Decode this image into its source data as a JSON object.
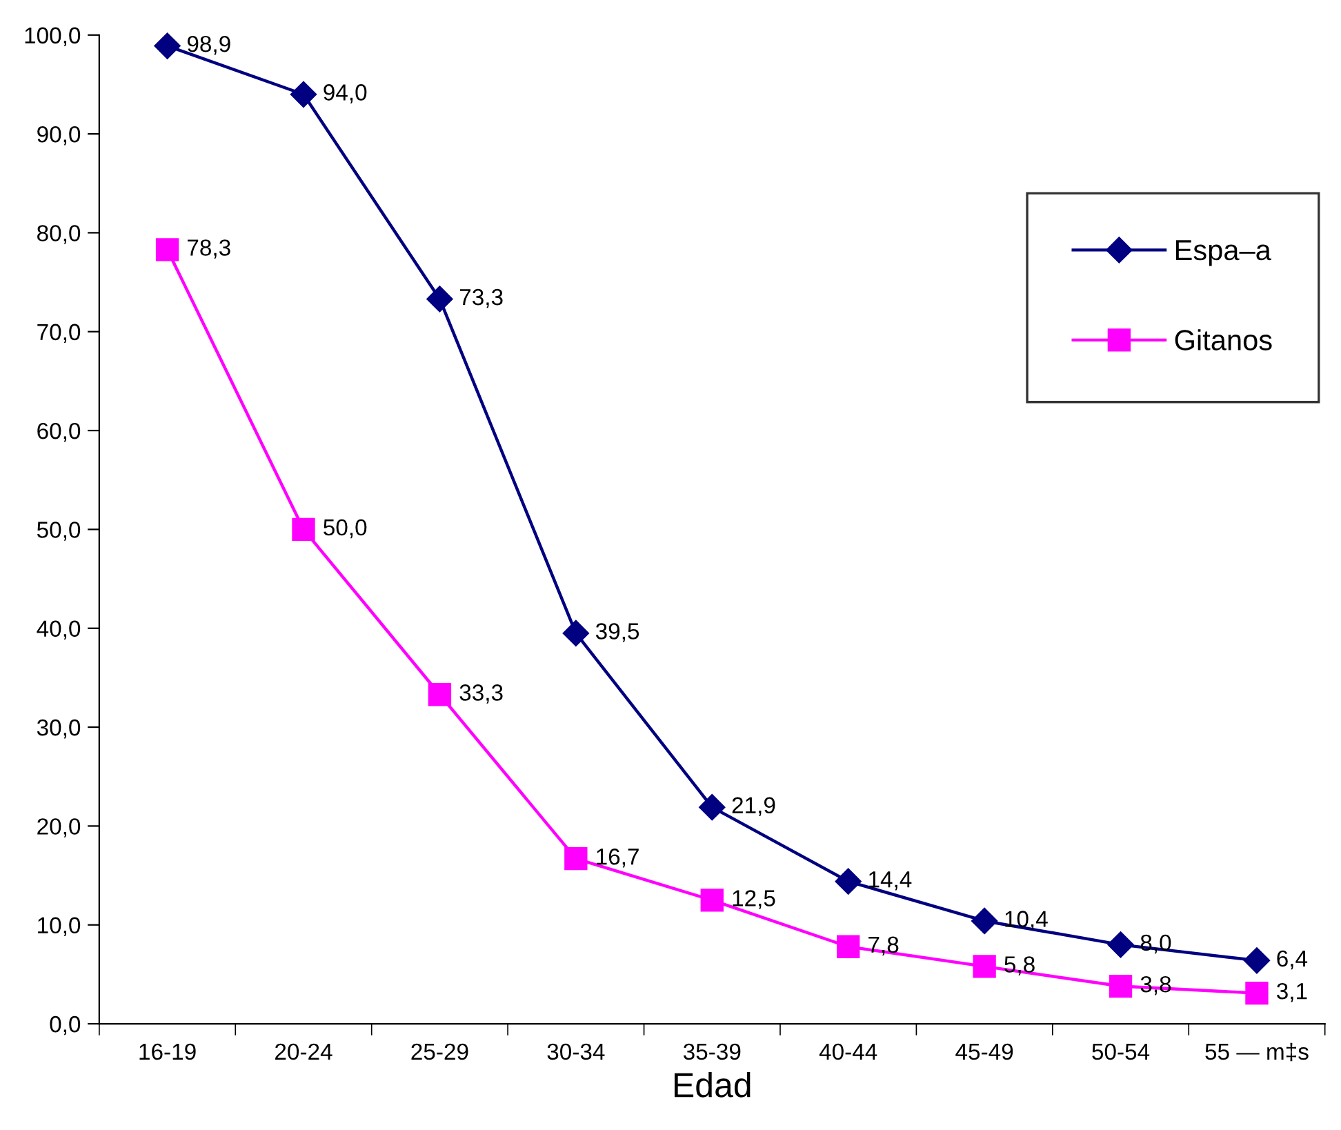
{
  "chart_data": {
    "type": "line",
    "xlabel": "Edad",
    "categories": [
      "16-19",
      "20-24",
      "25-29",
      "30-34",
      "35-39",
      "40-44",
      "45-49",
      "50-54",
      "55 — m‡s"
    ],
    "series": [
      {
        "name": "Espa–a",
        "color": "#000080",
        "marker": "diamond",
        "values": [
          98.9,
          94.0,
          73.3,
          39.5,
          21.9,
          14.4,
          10.4,
          8.0,
          6.4
        ],
        "value_labels": [
          "98,9",
          "94,0",
          "73,3",
          "39,5",
          "21,9",
          "14,4",
          "10,4",
          "8,0",
          "6,4"
        ]
      },
      {
        "name": "Gitanos",
        "color": "#ff00ff",
        "marker": "square",
        "values": [
          78.3,
          50.0,
          33.3,
          16.7,
          12.5,
          7.8,
          5.8,
          3.8,
          3.1
        ],
        "value_labels": [
          "78,3",
          "50,0",
          "33,3",
          "16,7",
          "12,5",
          "7,8",
          "5,8",
          "3,8",
          "3,1"
        ]
      }
    ],
    "ylim": [
      0,
      100
    ],
    "yticks": [
      {
        "value": 0,
        "label": "0,0"
      },
      {
        "value": 10,
        "label": "10,0"
      },
      {
        "value": 20,
        "label": "20,0"
      },
      {
        "value": 30,
        "label": "30,0"
      },
      {
        "value": 40,
        "label": "40,0"
      },
      {
        "value": 50,
        "label": "50,0"
      },
      {
        "value": 60,
        "label": "60,0"
      },
      {
        "value": 70,
        "label": "70,0"
      },
      {
        "value": 80,
        "label": "80,0"
      },
      {
        "value": 90,
        "label": "90,0"
      },
      {
        "value": 100,
        "label": "100,0"
      }
    ],
    "grid": false,
    "legend": "top right",
    "line_style": "solid"
  }
}
